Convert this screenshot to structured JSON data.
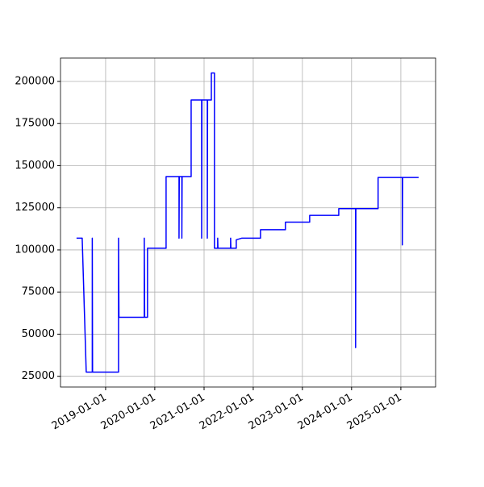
{
  "chart_data": {
    "type": "line",
    "x": [
      "2018-05-30",
      "2018-07-11",
      "2018-08-10",
      "2018-09-24",
      "2018-09-24",
      "2018-09-26",
      "2019-04-07",
      "2019-04-07",
      "2019-04-10",
      "2019-10-15",
      "2019-10-15",
      "2019-10-18",
      "2019-11-08",
      "2019-11-08",
      "2020-03-25",
      "2020-03-25",
      "2020-06-29",
      "2020-06-29",
      "2020-07-01",
      "2020-07-20",
      "2020-07-20",
      "2020-07-22",
      "2020-09-27",
      "2020-09-27",
      "2020-12-14",
      "2020-12-14",
      "2020-12-16",
      "2021-01-25",
      "2021-01-25",
      "2021-01-27",
      "2021-02-24",
      "2021-02-24",
      "2021-03-19",
      "2021-03-19",
      "2021-04-12",
      "2021-04-12",
      "2021-04-14",
      "2021-07-17",
      "2021-07-17",
      "2021-07-19",
      "2021-08-28",
      "2021-08-28",
      "2021-10-09",
      "2022-02-24",
      "2022-02-24",
      "2022-08-28",
      "2022-08-28",
      "2023-02-24",
      "2023-02-24",
      "2023-09-28",
      "2023-09-28",
      "2024-01-31",
      "2024-01-31",
      "2024-02-02",
      "2024-07-16",
      "2024-07-16",
      "2025-01-12",
      "2025-01-12",
      "2025-01-14",
      "2025-05-13"
    ],
    "values": [
      107000,
      107000,
      27500,
      27500,
      107000,
      27500,
      27500,
      107000,
      60000,
      60000,
      107000,
      60000,
      60000,
      101000,
      101000,
      143500,
      143500,
      107000,
      143500,
      143500,
      107000,
      143500,
      143500,
      189000,
      189000,
      107000,
      189000,
      189000,
      107000,
      189000,
      189000,
      205000,
      205000,
      101000,
      101000,
      107000,
      101000,
      101000,
      107000,
      101000,
      101000,
      106000,
      107000,
      107000,
      112000,
      112000,
      116500,
      116500,
      120500,
      120500,
      124500,
      124500,
      42000,
      124500,
      124500,
      143000,
      143000,
      103000,
      143000,
      143000
    ],
    "color": "#0000ff",
    "xlim": [
      "2018-01-31",
      "2025-09-16"
    ],
    "xticks": [
      "2019-01-01",
      "2020-01-01",
      "2021-01-01",
      "2022-01-01",
      "2023-01-01",
      "2024-01-01",
      "2025-01-01"
    ],
    "ylim": [
      18625,
      213875
    ],
    "yticks": [
      25000,
      50000,
      75000,
      100000,
      125000,
      150000,
      175000,
      200000
    ],
    "grid": true
  }
}
